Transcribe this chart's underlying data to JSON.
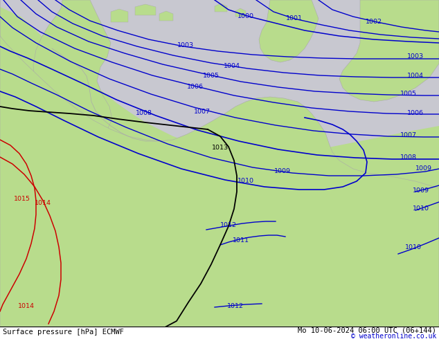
{
  "title_left": "Surface pressure [hPa] ECMWF",
  "title_right": "Mo 10-06-2024 06:00 UTC (06+144)",
  "copyright": "© weatheronline.co.uk",
  "land_green": "#b8dc8c",
  "sea_gray": "#c8c8d0",
  "bottom_bar_color": "#ffffff",
  "blue": "#0000cc",
  "black": "#000000",
  "red": "#cc0000",
  "gray_coast": "#aaaaaa",
  "figsize": [
    6.34,
    4.9
  ],
  "dpi": 100
}
